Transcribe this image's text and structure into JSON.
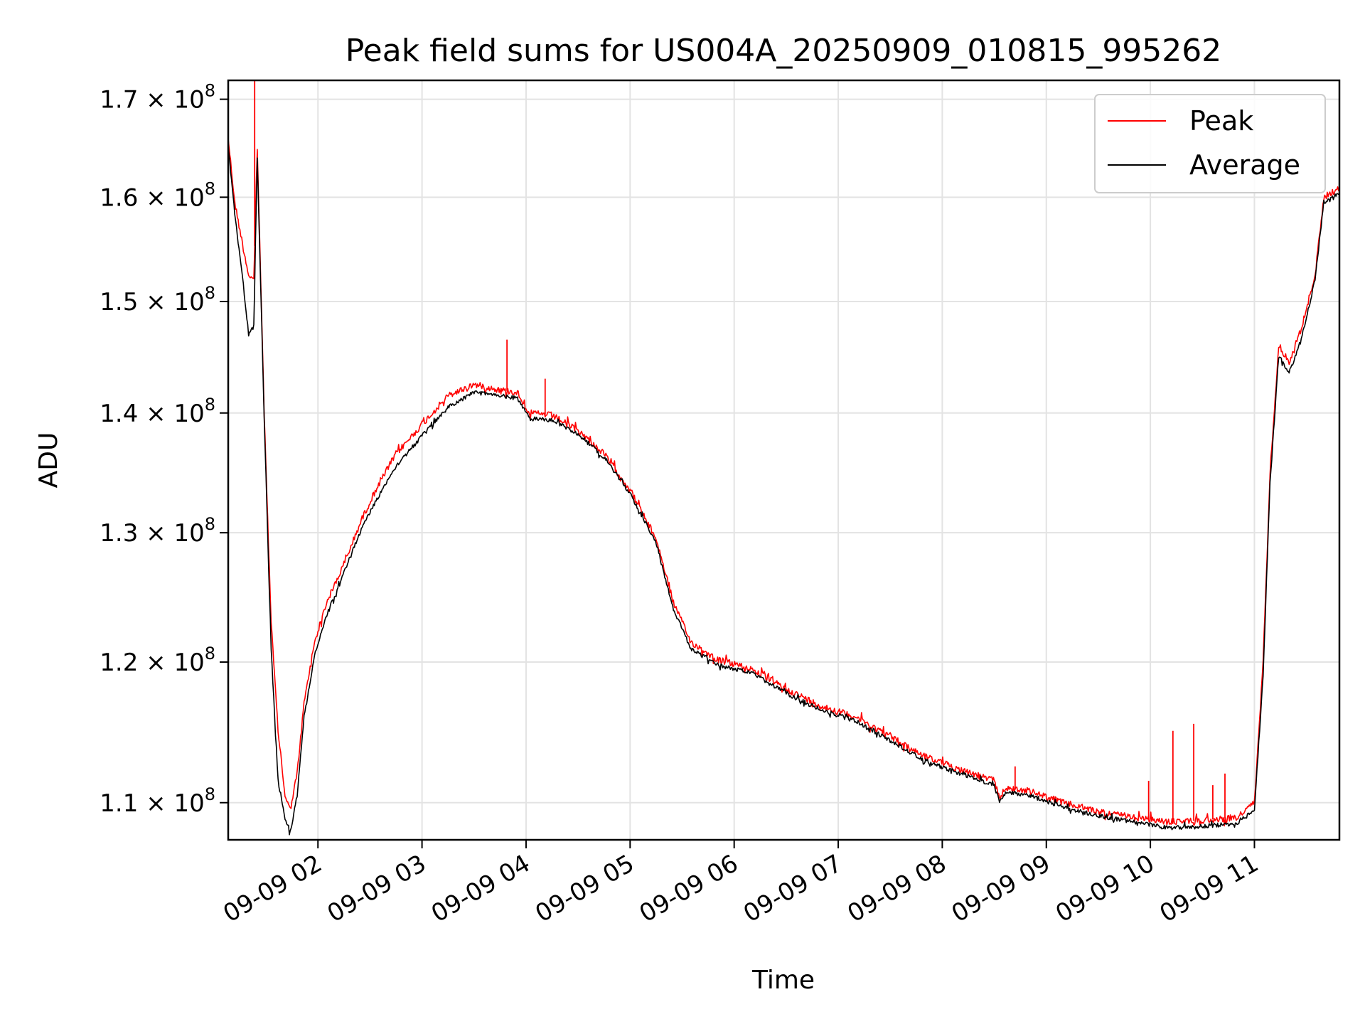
{
  "chart_data": {
    "type": "line",
    "title": "Peak field sums for US004A_20250909_010815_995262",
    "xlabel": "Time",
    "ylabel": "ADU",
    "y_scale": "log",
    "xlim": [
      "2025-09-09T01:08:15",
      "2025-09-09T11:49:00"
    ],
    "ylim": [
      107500000,
      172000000
    ],
    "grid": true,
    "legend_position": "top-right",
    "x_ticks": [
      {
        "value": "2025-09-09T02:00:00",
        "label": "09-09 02"
      },
      {
        "value": "2025-09-09T03:00:00",
        "label": "09-09 03"
      },
      {
        "value": "2025-09-09T04:00:00",
        "label": "09-09 04"
      },
      {
        "value": "2025-09-09T05:00:00",
        "label": "09-09 05"
      },
      {
        "value": "2025-09-09T06:00:00",
        "label": "09-09 06"
      },
      {
        "value": "2025-09-09T07:00:00",
        "label": "09-09 07"
      },
      {
        "value": "2025-09-09T08:00:00",
        "label": "09-09 08"
      },
      {
        "value": "2025-09-09T09:00:00",
        "label": "09-09 09"
      },
      {
        "value": "2025-09-09T10:00:00",
        "label": "09-09 10"
      },
      {
        "value": "2025-09-09T11:00:00",
        "label": "09-09 11"
      }
    ],
    "y_ticks": [
      {
        "value": 110000000,
        "base": "1.1",
        "exp": "8"
      },
      {
        "value": 120000000,
        "base": "1.2",
        "exp": "8"
      },
      {
        "value": 130000000,
        "base": "1.3",
        "exp": "8"
      },
      {
        "value": 140000000,
        "base": "1.4",
        "exp": "8"
      },
      {
        "value": 150000000,
        "base": "1.5",
        "exp": "8"
      },
      {
        "value": 160000000,
        "base": "1.6",
        "exp": "8"
      },
      {
        "value": 170000000,
        "base": "1.7",
        "exp": "8"
      }
    ],
    "series": [
      {
        "name": "Peak",
        "color": "#ff0000",
        "points": [
          [
            "2025-09-09T01:08:15",
            166000000
          ],
          [
            "2025-09-09T01:12:00",
            159500000
          ],
          [
            "2025-09-09T01:17:00",
            155000000
          ],
          [
            "2025-09-09T01:20:00",
            152500000
          ],
          [
            "2025-09-09T01:23:00",
            152000000
          ],
          [
            "2025-09-09T01:25:00",
            165000000
          ],
          [
            "2025-09-09T01:29:00",
            140000000
          ],
          [
            "2025-09-09T01:33:00",
            123000000
          ],
          [
            "2025-09-09T01:37:00",
            115000000
          ],
          [
            "2025-09-09T01:41:00",
            110500000
          ],
          [
            "2025-09-09T01:44:00",
            109500000
          ],
          [
            "2025-09-09T01:48:00",
            112000000
          ],
          [
            "2025-09-09T01:52:00",
            117000000
          ],
          [
            "2025-09-09T01:58:00",
            121500000
          ],
          [
            "2025-09-09T02:05:00",
            124500000
          ],
          [
            "2025-09-09T02:15:00",
            127500000
          ],
          [
            "2025-09-09T02:25:00",
            131000000
          ],
          [
            "2025-09-09T02:35:00",
            134000000
          ],
          [
            "2025-09-09T02:45:00",
            136500000
          ],
          [
            "2025-09-09T03:00:00",
            139000000
          ],
          [
            "2025-09-09T03:15:00",
            141500000
          ],
          [
            "2025-09-09T03:30:00",
            142500000
          ],
          [
            "2025-09-09T03:45:00",
            142000000
          ],
          [
            "2025-09-09T03:55:00",
            141800000
          ],
          [
            "2025-09-09T04:02:00",
            140000000
          ],
          [
            "2025-09-09T04:15:00",
            139800000
          ],
          [
            "2025-09-09T04:30:00",
            138500000
          ],
          [
            "2025-09-09T04:45:00",
            136500000
          ],
          [
            "2025-09-09T05:00:00",
            133500000
          ],
          [
            "2025-09-09T05:15:00",
            129500000
          ],
          [
            "2025-09-09T05:25:00",
            124500000
          ],
          [
            "2025-09-09T05:35:00",
            121500000
          ],
          [
            "2025-09-09T05:50:00",
            120200000
          ],
          [
            "2025-09-09T06:10:00",
            119500000
          ],
          [
            "2025-09-09T06:30:00",
            118000000
          ],
          [
            "2025-09-09T06:50:00",
            116800000
          ],
          [
            "2025-09-09T07:10:00",
            116000000
          ],
          [
            "2025-09-09T07:30:00",
            114600000
          ],
          [
            "2025-09-09T07:50:00",
            113200000
          ],
          [
            "2025-09-09T08:10:00",
            112300000
          ],
          [
            "2025-09-09T08:30:00",
            111500000
          ],
          [
            "2025-09-09T08:33:00",
            110400000
          ],
          [
            "2025-09-09T08:37:00",
            111000000
          ],
          [
            "2025-09-09T08:50:00",
            110800000
          ],
          [
            "2025-09-09T09:10:00",
            110000000
          ],
          [
            "2025-09-09T09:30:00",
            109400000
          ],
          [
            "2025-09-09T09:50:00",
            109000000
          ],
          [
            "2025-09-09T10:10:00",
            108700000
          ],
          [
            "2025-09-09T10:30:00",
            108800000
          ],
          [
            "2025-09-09T10:50:00",
            109000000
          ],
          [
            "2025-09-09T11:00:00",
            110000000
          ],
          [
            "2025-09-09T11:05:00",
            120000000
          ],
          [
            "2025-09-09T11:09:00",
            135000000
          ],
          [
            "2025-09-09T11:14:00",
            146000000
          ],
          [
            "2025-09-09T11:20:00",
            144500000
          ],
          [
            "2025-09-09T11:27:00",
            147500000
          ],
          [
            "2025-09-09T11:35:00",
            152500000
          ],
          [
            "2025-09-09T11:40:00",
            160000000
          ],
          [
            "2025-09-09T11:45:00",
            160500000
          ],
          [
            "2025-09-09T11:49:00",
            161000000
          ]
        ],
        "spikes": [
          [
            "2025-09-09T01:23:30",
            172000000
          ],
          [
            "2025-09-09T03:49:00",
            146500000
          ],
          [
            "2025-09-09T04:11:00",
            143000000
          ],
          [
            "2025-09-09T08:42:00",
            112500000
          ],
          [
            "2025-09-09T09:59:00",
            111500000
          ],
          [
            "2025-09-09T10:13:00",
            115000000
          ],
          [
            "2025-09-09T10:25:00",
            115500000
          ],
          [
            "2025-09-09T10:36:00",
            111200000
          ],
          [
            "2025-09-09T10:43:00",
            112000000
          ]
        ]
      },
      {
        "name": "Average",
        "color": "#000000",
        "points": [
          [
            "2025-09-09T01:08:15",
            165000000
          ],
          [
            "2025-09-09T01:12:00",
            158500000
          ],
          [
            "2025-09-09T01:17:00",
            151500000
          ],
          [
            "2025-09-09T01:20:00",
            147000000
          ],
          [
            "2025-09-09T01:23:00",
            148000000
          ],
          [
            "2025-09-09T01:25:00",
            164000000
          ],
          [
            "2025-09-09T01:29:00",
            139500000
          ],
          [
            "2025-09-09T01:33:00",
            121000000
          ],
          [
            "2025-09-09T01:37:00",
            111500000
          ],
          [
            "2025-09-09T01:41:00",
            109000000
          ],
          [
            "2025-09-09T01:44:00",
            108000000
          ],
          [
            "2025-09-09T01:48:00",
            110500000
          ],
          [
            "2025-09-09T01:52:00",
            116000000
          ],
          [
            "2025-09-09T01:58:00",
            120500000
          ],
          [
            "2025-09-09T02:05:00",
            123500000
          ],
          [
            "2025-09-09T02:15:00",
            126800000
          ],
          [
            "2025-09-09T02:25:00",
            130300000
          ],
          [
            "2025-09-09T02:35:00",
            133000000
          ],
          [
            "2025-09-09T02:45:00",
            135500000
          ],
          [
            "2025-09-09T03:00:00",
            138000000
          ],
          [
            "2025-09-09T03:15:00",
            140500000
          ],
          [
            "2025-09-09T03:30:00",
            141800000
          ],
          [
            "2025-09-09T03:45:00",
            141500000
          ],
          [
            "2025-09-09T03:55:00",
            141300000
          ],
          [
            "2025-09-09T04:02:00",
            139500000
          ],
          [
            "2025-09-09T04:15:00",
            139400000
          ],
          [
            "2025-09-09T04:30:00",
            138200000
          ],
          [
            "2025-09-09T04:45:00",
            136200000
          ],
          [
            "2025-09-09T05:00:00",
            133200000
          ],
          [
            "2025-09-09T05:15:00",
            129200000
          ],
          [
            "2025-09-09T05:25:00",
            124000000
          ],
          [
            "2025-09-09T05:35:00",
            121000000
          ],
          [
            "2025-09-09T05:50:00",
            119800000
          ],
          [
            "2025-09-09T06:10:00",
            119200000
          ],
          [
            "2025-09-09T06:30:00",
            117700000
          ],
          [
            "2025-09-09T06:50:00",
            116500000
          ],
          [
            "2025-09-09T07:10:00",
            115700000
          ],
          [
            "2025-09-09T07:30:00",
            114300000
          ],
          [
            "2025-09-09T07:50:00",
            112900000
          ],
          [
            "2025-09-09T08:10:00",
            112000000
          ],
          [
            "2025-09-09T08:30:00",
            111200000
          ],
          [
            "2025-09-09T08:33:00",
            110000000
          ],
          [
            "2025-09-09T08:37:00",
            110700000
          ],
          [
            "2025-09-09T08:50:00",
            110500000
          ],
          [
            "2025-09-09T09:10:00",
            109700000
          ],
          [
            "2025-09-09T09:30:00",
            109100000
          ],
          [
            "2025-09-09T09:50:00",
            108700000
          ],
          [
            "2025-09-09T10:10:00",
            108300000
          ],
          [
            "2025-09-09T10:30:00",
            108400000
          ],
          [
            "2025-09-09T10:50:00",
            108600000
          ],
          [
            "2025-09-09T11:00:00",
            109500000
          ],
          [
            "2025-09-09T11:05:00",
            119000000
          ],
          [
            "2025-09-09T11:09:00",
            134000000
          ],
          [
            "2025-09-09T11:14:00",
            145000000
          ],
          [
            "2025-09-09T11:20:00",
            143500000
          ],
          [
            "2025-09-09T11:27:00",
            146500000
          ],
          [
            "2025-09-09T11:35:00",
            152000000
          ],
          [
            "2025-09-09T11:40:00",
            159500000
          ],
          [
            "2025-09-09T11:45:00",
            160000000
          ],
          [
            "2025-09-09T11:49:00",
            160300000
          ]
        ],
        "spikes": []
      }
    ]
  }
}
